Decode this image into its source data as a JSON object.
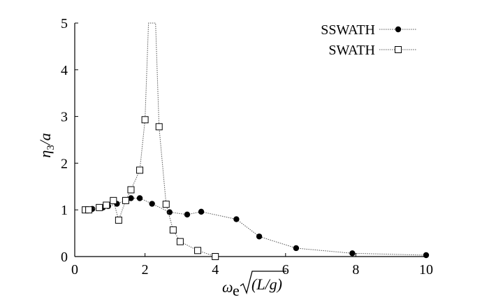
{
  "chart_data": {
    "type": "line",
    "title": "",
    "xlabel": "ω e √(L/g)",
    "ylabel": "η3/a",
    "xlim": [
      0,
      10
    ],
    "ylim": [
      0,
      5
    ],
    "xticks": [
      "0",
      "2",
      "4",
      "6",
      "8",
      "10"
    ],
    "yticks": [
      "0",
      "1",
      "2",
      "3",
      "4",
      "5"
    ],
    "grid": false,
    "legend_position": "top-right",
    "series": [
      {
        "name": "SSWATH",
        "marker": "filled-circle",
        "line_style": "dotted",
        "points": [
          {
            "x": 0.3,
            "y": 1.0
          },
          {
            "x": 0.5,
            "y": 1.02
          },
          {
            "x": 0.8,
            "y": 1.05
          },
          {
            "x": 0.95,
            "y": 1.08
          },
          {
            "x": 1.2,
            "y": 1.13
          },
          {
            "x": 1.6,
            "y": 1.25
          },
          {
            "x": 1.85,
            "y": 1.25
          },
          {
            "x": 2.2,
            "y": 1.13
          },
          {
            "x": 2.7,
            "y": 0.95
          },
          {
            "x": 3.2,
            "y": 0.9
          },
          {
            "x": 3.6,
            "y": 0.96
          },
          {
            "x": 4.6,
            "y": 0.8
          },
          {
            "x": 5.25,
            "y": 0.43
          },
          {
            "x": 6.3,
            "y": 0.18
          },
          {
            "x": 7.9,
            "y": 0.07
          },
          {
            "x": 10.0,
            "y": 0.03
          }
        ]
      },
      {
        "name": "SWATH",
        "marker": "open-square",
        "line_style": "dotted",
        "points": [
          {
            "x": 0.3,
            "y": 1.0
          },
          {
            "x": 0.4,
            "y": 1.0
          },
          {
            "x": 0.7,
            "y": 1.05
          },
          {
            "x": 0.9,
            "y": 1.1
          },
          {
            "x": 1.1,
            "y": 1.2
          },
          {
            "x": 1.25,
            "y": 0.78
          },
          {
            "x": 1.45,
            "y": 1.2
          },
          {
            "x": 1.6,
            "y": 1.43
          },
          {
            "x": 1.85,
            "y": 1.85
          },
          {
            "x": 2.0,
            "y": 2.93
          },
          {
            "x": 2.1,
            "y": 5.0
          },
          {
            "x": 2.3,
            "y": 5.0
          },
          {
            "x": 2.4,
            "y": 2.78
          },
          {
            "x": 2.6,
            "y": 1.12
          },
          {
            "x": 2.8,
            "y": 0.57
          },
          {
            "x": 3.0,
            "y": 0.32
          },
          {
            "x": 3.5,
            "y": 0.13
          },
          {
            "x": 4.0,
            "y": 0.0
          }
        ]
      }
    ]
  }
}
